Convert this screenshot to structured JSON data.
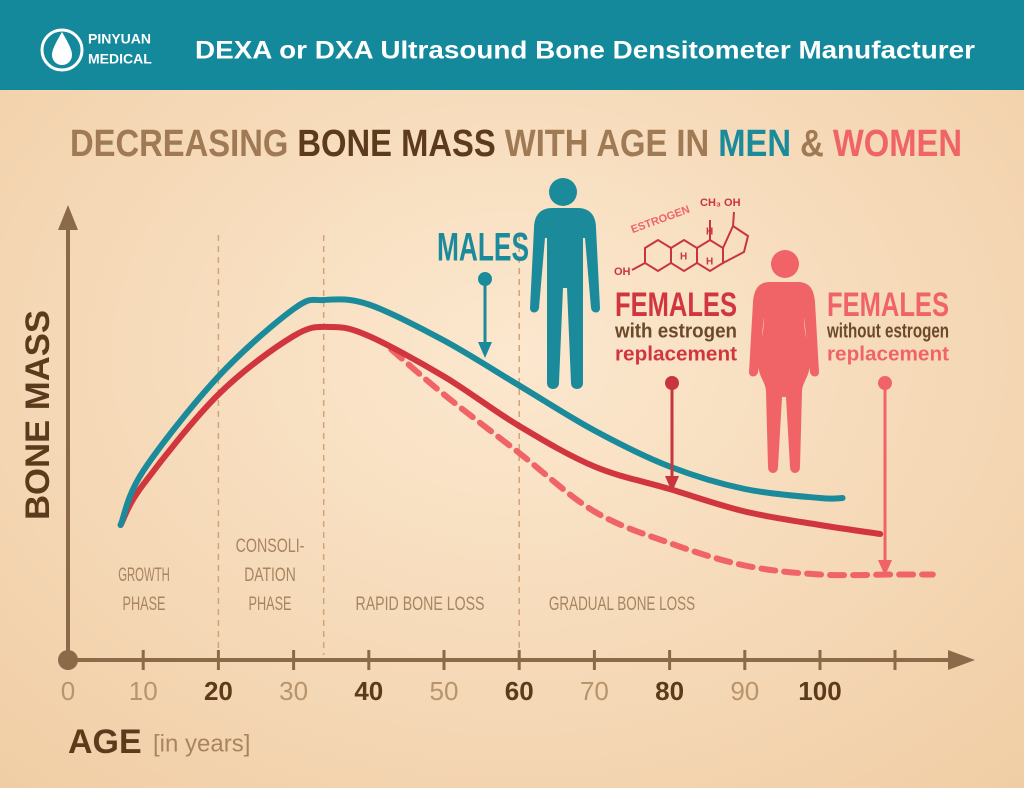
{
  "header": {
    "brand": [
      "PINYUAN",
      "MEDICAL"
    ],
    "title": "DEXA or DXA  Ultrasound Bone Densitometer Manufacturer"
  },
  "chart_data": {
    "type": "line",
    "title_parts": [
      {
        "text": "DECREASING",
        "color": "#a07a55"
      },
      {
        "text": "BONE MASS",
        "color": "#5c3a1c"
      },
      {
        "text": "WITH AGE IN",
        "color": "#a07a55"
      },
      {
        "text": "MEN",
        "color": "#1b8b9b"
      },
      {
        "text": "&",
        "color": "#a07a55"
      },
      {
        "text": "WOMEN",
        "color": "#f06468"
      }
    ],
    "y_label": "BONE MASS",
    "x_label": "AGE",
    "x_unit": "[in years]",
    "xlim": [
      0,
      120
    ],
    "xticks": [
      0,
      10,
      20,
      30,
      40,
      50,
      60,
      70,
      80,
      90,
      100
    ],
    "ylim": [
      0,
      100
    ],
    "phase_boundaries": [
      20,
      34,
      60
    ],
    "phases": [
      {
        "lines": [
          "GROWTH",
          "PHASE"
        ]
      },
      {
        "lines": [
          "CONSOLI-",
          "DATION",
          "PHASE"
        ]
      },
      {
        "lines": [
          "RAPID BONE LOSS"
        ]
      },
      {
        "lines": [
          "GRADUAL BONE LOSS"
        ]
      }
    ],
    "series": [
      {
        "name": "MALES",
        "color": "#1b8b9b",
        "dashed": false,
        "x": [
          7,
          10,
          20,
          30,
          34,
          40,
          50,
          60,
          70,
          80,
          90,
          100,
          103
        ],
        "values": [
          30,
          42,
          63,
          78,
          80,
          79,
          71,
          61,
          51,
          43,
          38,
          36,
          36
        ]
      },
      {
        "name": "FEMALES",
        "notes": [
          "with estrogen",
          "replacement"
        ],
        "color": "#d1363f",
        "dashed": false,
        "x": [
          7,
          10,
          20,
          30,
          35,
          40,
          50,
          60,
          70,
          80,
          90,
          100,
          108
        ],
        "values": [
          30,
          39,
          59,
          72,
          74,
          72,
          63,
          52,
          43,
          38,
          33,
          30,
          28
        ]
      },
      {
        "name": "FEMALES",
        "notes": [
          "without estrogen",
          "replacement"
        ],
        "color": "#f06468",
        "dashed": true,
        "x": [
          43,
          50,
          60,
          70,
          80,
          90,
          100,
          110,
          115
        ],
        "values": [
          69,
          59,
          46,
          33,
          26,
          21,
          19,
          19,
          19
        ]
      }
    ],
    "molecule": {
      "label": "ESTROGEN",
      "groups": [
        "CH₃ OH",
        "OH",
        "H",
        "H",
        "H"
      ]
    }
  }
}
